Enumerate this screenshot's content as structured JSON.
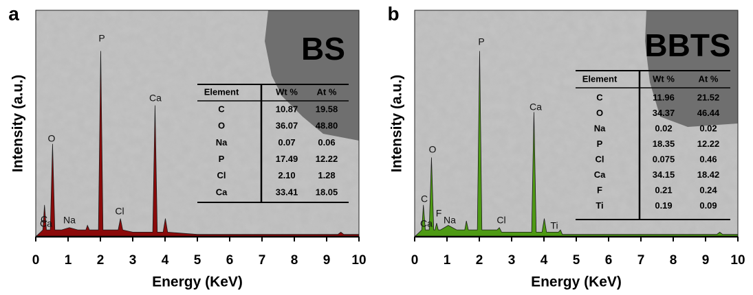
{
  "chart_data": [
    {
      "type": "area",
      "panel": "a",
      "sample": "BS",
      "x_label": "Energy (KeV)",
      "y_label": "Intensity (a.u.)",
      "color": "#8b0a0a",
      "xlim": [
        0,
        10
      ],
      "xticks": [
        0,
        1,
        2,
        3,
        4,
        5,
        6,
        7,
        8,
        9,
        10
      ],
      "ylim": [
        0,
        100
      ],
      "x": [
        0,
        0.15,
        0.22,
        0.27,
        0.33,
        0.45,
        0.52,
        0.59,
        0.8,
        1.04,
        1.3,
        1.55,
        1.6,
        1.66,
        1.94,
        2.01,
        2.08,
        2.3,
        2.55,
        2.62,
        2.69,
        3.0,
        3.62,
        3.69,
        3.76,
        3.94,
        4.01,
        4.08,
        5,
        7,
        9.35,
        9.44,
        9.53,
        10
      ],
      "values": [
        0,
        2,
        3,
        14,
        3,
        3,
        41,
        3,
        3,
        4,
        3,
        3,
        5,
        3,
        3,
        82,
        3,
        3,
        3,
        8,
        3,
        2,
        2,
        58,
        2,
        2,
        8,
        2,
        1,
        1,
        1,
        2,
        1,
        1
      ],
      "annotations": [
        "C",
        "Ca",
        "O",
        "Na",
        "P",
        "Cl",
        "Ca"
      ],
      "table": {
        "columns": [
          "Element",
          "Wt %",
          "At %"
        ],
        "rows": [
          [
            "C",
            "10.87",
            "19.58"
          ],
          [
            "O",
            "36.07",
            "48.80"
          ],
          [
            "Na",
            "0.07",
            "0.06"
          ],
          [
            "P",
            "17.49",
            "12.22"
          ],
          [
            "Cl",
            "2.10",
            "1.28"
          ],
          [
            "Ca",
            "33.41",
            "18.05"
          ]
        ]
      }
    },
    {
      "type": "area",
      "panel": "b",
      "sample": "BBTS",
      "x_label": "Energy (KeV)",
      "y_label": "Intensity (a.u.)",
      "color": "#4e9a14",
      "xlim": [
        0,
        10
      ],
      "xticks": [
        0,
        1,
        2,
        3,
        4,
        5,
        6,
        7,
        8,
        9,
        10
      ],
      "ylim": [
        0,
        100
      ],
      "x": [
        0,
        0.15,
        0.22,
        0.27,
        0.33,
        0.45,
        0.52,
        0.59,
        0.63,
        0.68,
        0.73,
        0.8,
        1.04,
        1.3,
        1.55,
        1.6,
        1.66,
        1.94,
        2.01,
        2.08,
        2.3,
        2.55,
        2.62,
        2.69,
        3.0,
        3.62,
        3.69,
        3.76,
        3.94,
        4.01,
        4.08,
        4.45,
        4.51,
        4.57,
        5,
        7,
        9.35,
        9.44,
        9.53,
        10
      ],
      "values": [
        0,
        2,
        3,
        14,
        3,
        3,
        35,
        3,
        3,
        6,
        3,
        3,
        5,
        3,
        3,
        7,
        3,
        3,
        82,
        3,
        3,
        3,
        4,
        2,
        2,
        2,
        55,
        2,
        2,
        8,
        2,
        2,
        3,
        1,
        1,
        1,
        1,
        2,
        1,
        1
      ],
      "annotations": [
        "C",
        "Ca",
        "O",
        "F",
        "Na",
        "P",
        "Cl",
        "Ca",
        "Ti"
      ],
      "table": {
        "columns": [
          "Element",
          "Wt %",
          "At %"
        ],
        "rows": [
          [
            "C",
            "11.96",
            "21.52"
          ],
          [
            "O",
            "34.37",
            "46.44"
          ],
          [
            "Na",
            "0.02",
            "0.02"
          ],
          [
            "P",
            "18.35",
            "12.22"
          ],
          [
            "Cl",
            "0.075",
            "0.46"
          ],
          [
            "Ca",
            "34.15",
            "18.42"
          ],
          [
            "F",
            "0.21",
            "0.24"
          ],
          [
            "Ti",
            "0.19",
            "0.09"
          ]
        ]
      }
    }
  ]
}
